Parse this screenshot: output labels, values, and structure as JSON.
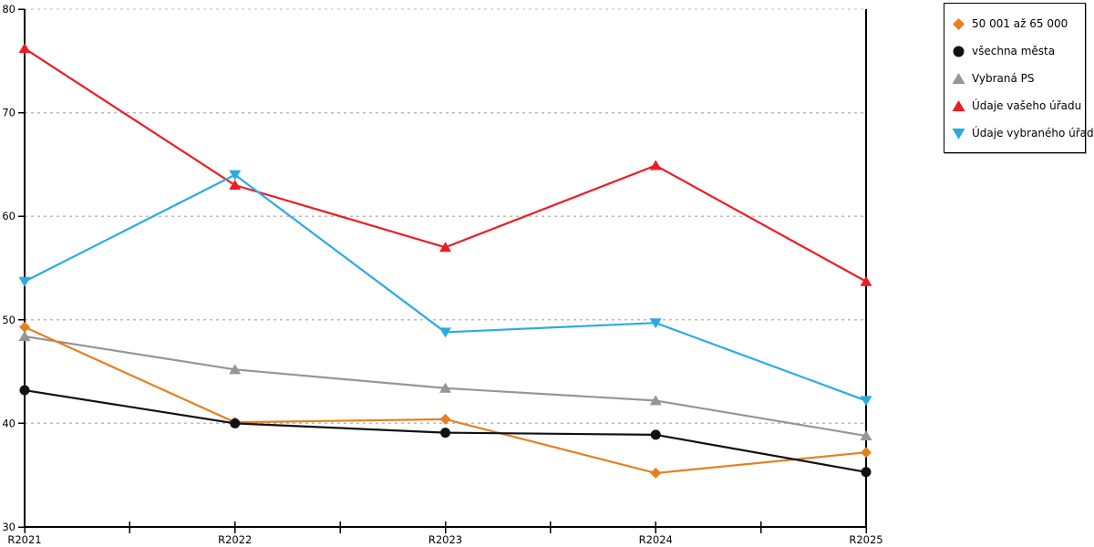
{
  "chart_data": {
    "type": "line",
    "categories": [
      "R2021",
      "R2022",
      "R2023",
      "R2024",
      "R2025"
    ],
    "series": [
      {
        "name": "50 001 až 65 000",
        "marker": "diamond",
        "color": "#E5801F",
        "values": [
          49.3,
          40.1,
          40.4,
          35.2,
          37.2
        ]
      },
      {
        "name": "všechna města",
        "marker": "circle",
        "color": "#111111",
        "values": [
          43.2,
          40.0,
          39.1,
          38.9,
          35.3
        ]
      },
      {
        "name": "Vybraná PS",
        "marker": "triangle-up",
        "color": "#969696",
        "values": [
          48.4,
          45.2,
          43.4,
          42.2,
          38.8
        ]
      },
      {
        "name": "Údaje vašeho úřadu",
        "marker": "triangle-up",
        "color": "#ED1C24",
        "values": [
          76.2,
          63.0,
          57.0,
          64.9,
          53.7
        ]
      },
      {
        "name": "Údaje vybraného úřadu",
        "marker": "triangle-down",
        "color": "#29ABE2",
        "values": [
          53.7,
          64.0,
          48.8,
          49.7,
          42.2
        ]
      }
    ],
    "ylim": [
      30,
      80
    ],
    "y_ticks": [
      30,
      40,
      50,
      60,
      70,
      80
    ],
    "grid": "horizontal-dashed",
    "gridline_color": "#BBBBBB",
    "axis_color": "#000000",
    "legend_position": "top-right"
  }
}
